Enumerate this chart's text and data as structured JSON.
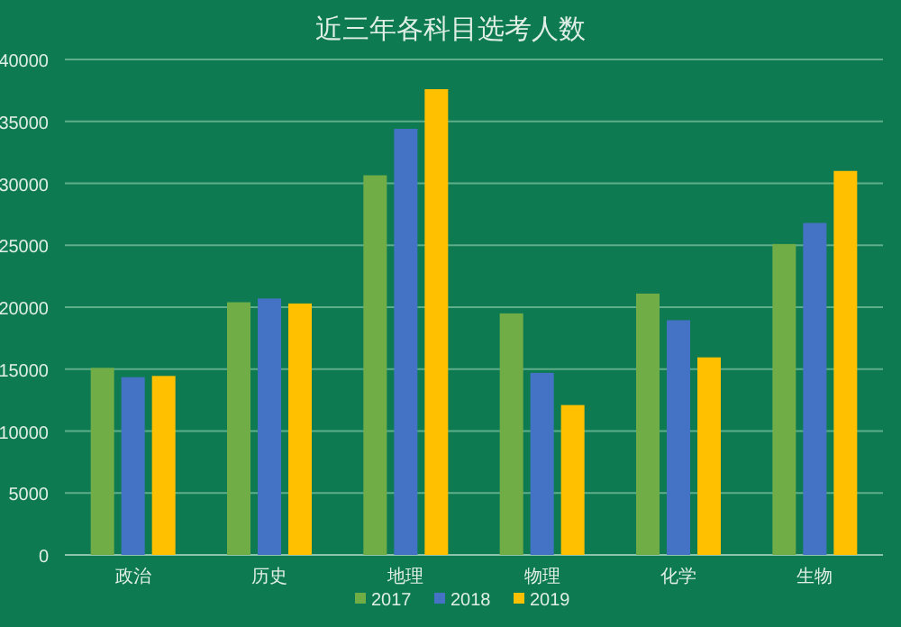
{
  "chart_data": {
    "type": "bar",
    "title": "近三年各科目选考人数",
    "categories": [
      "政治",
      "历史",
      "地理",
      "物理",
      "化学",
      "生物"
    ],
    "series": [
      {
        "name": "2017",
        "color": "#70ad47",
        "values": [
          15100,
          20400,
          30650,
          19500,
          21100,
          25100
        ]
      },
      {
        "name": "2018",
        "color": "#4472c4",
        "values": [
          14350,
          20700,
          34400,
          14700,
          18950,
          26800
        ]
      },
      {
        "name": "2019",
        "color": "#ffc000",
        "values": [
          14450,
          20300,
          37600,
          12100,
          15950,
          31000
        ]
      }
    ],
    "ylim": [
      0,
      40000
    ],
    "yticks": [
      0,
      5000,
      10000,
      15000,
      20000,
      25000,
      30000,
      35000,
      40000
    ],
    "grid": "y",
    "legend": "bottom"
  }
}
